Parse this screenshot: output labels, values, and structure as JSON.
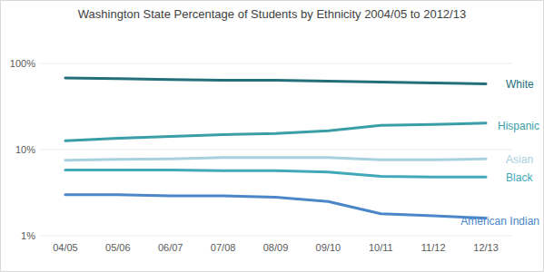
{
  "chart_data": {
    "type": "line",
    "title": "Washington State Percentage of Students by Ethnicity 2004/05 to 2012/13",
    "categories": [
      "04/05",
      "05/06",
      "06/07",
      "07/08",
      "08/09",
      "09/10",
      "10/11",
      "11/12",
      "12/13"
    ],
    "series": [
      {
        "name": "White",
        "color": "#236f7a",
        "values": [
          68,
          66.5,
          65,
          64,
          64,
          62.5,
          61,
          59.5,
          58
        ]
      },
      {
        "name": "Hispanic",
        "color": "#3a9ea6",
        "values": [
          12.7,
          13.5,
          14.2,
          14.9,
          15.4,
          16.5,
          19.1,
          19.6,
          20.3
        ]
      },
      {
        "name": "Asian",
        "color": "#a9d0e0",
        "values": [
          7.5,
          7.7,
          7.8,
          8.1,
          8.1,
          8.1,
          7.6,
          7.6,
          7.8
        ]
      },
      {
        "name": "Black",
        "color": "#40a8b9",
        "values": [
          5.8,
          5.8,
          5.8,
          5.7,
          5.7,
          5.5,
          4.9,
          4.8,
          4.8
        ]
      },
      {
        "name": "American Indian",
        "color": "#4a86c8",
        "values": [
          3.0,
          3.0,
          2.9,
          2.9,
          2.8,
          2.5,
          1.8,
          1.7,
          1.6
        ]
      }
    ],
    "ylim": [
      1,
      100
    ],
    "yticks": [
      {
        "value": 1,
        "label": "1%"
      },
      {
        "value": 10,
        "label": "10%"
      },
      {
        "value": 100,
        "label": "100%"
      }
    ],
    "log": "y",
    "grid": true
  }
}
